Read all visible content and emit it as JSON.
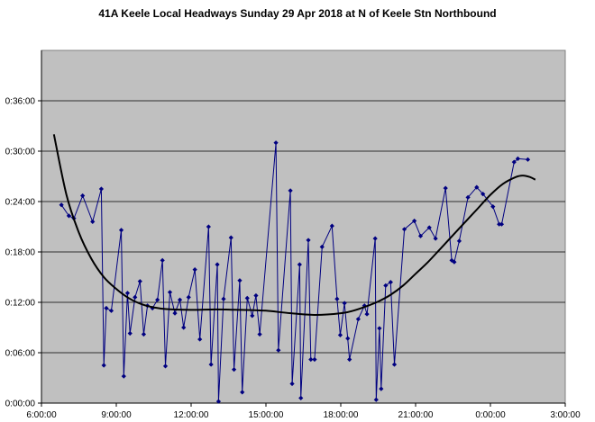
{
  "chart_data": {
    "type": "line",
    "title": "41A Keele Local Headways Sunday 29 Apr 2018 at N of Keele Stn Northbound",
    "xlabel": "",
    "ylabel": "",
    "x_axis": {
      "unit": "hours since midnight",
      "range": [
        6,
        27
      ],
      "tick_labels": [
        "6:00:00",
        "9:00:00",
        "12:00:00",
        "15:00:00",
        "18:00:00",
        "21:00:00",
        "0:00:00",
        "3:00:00"
      ]
    },
    "y_axis": {
      "unit": "minutes",
      "range": [
        0,
        42
      ],
      "tick_labels": [
        "0:00:00",
        "0:06:00",
        "0:12:00",
        "0:18:00",
        "0:24:00",
        "0:30:00",
        "0:36:00"
      ]
    },
    "grid": "horizontal",
    "legend": "none",
    "series": [
      {
        "color": "#000080",
        "marker": "diamond",
        "points": [
          [
            6.8,
            23.6
          ],
          [
            7.1,
            22.3
          ],
          [
            7.3,
            22.0
          ],
          [
            7.65,
            24.7
          ],
          [
            8.05,
            21.6
          ],
          [
            8.4,
            25.5
          ],
          [
            8.5,
            4.5
          ],
          [
            8.6,
            11.3
          ],
          [
            8.8,
            11.0
          ],
          [
            9.2,
            20.6
          ],
          [
            9.3,
            3.2
          ],
          [
            9.45,
            13.1
          ],
          [
            9.55,
            8.3
          ],
          [
            9.75,
            12.6
          ],
          [
            9.95,
            14.5
          ],
          [
            10.1,
            8.2
          ],
          [
            10.25,
            11.6
          ],
          [
            10.45,
            11.3
          ],
          [
            10.65,
            12.3
          ],
          [
            10.85,
            17.0
          ],
          [
            10.97,
            4.4
          ],
          [
            11.15,
            13.2
          ],
          [
            11.35,
            10.7
          ],
          [
            11.55,
            12.3
          ],
          [
            11.7,
            9.0
          ],
          [
            11.9,
            12.6
          ],
          [
            12.15,
            15.9
          ],
          [
            12.35,
            7.6
          ],
          [
            12.7,
            21.0
          ],
          [
            12.8,
            4.6
          ],
          [
            13.05,
            16.5
          ],
          [
            13.1,
            0.2
          ],
          [
            13.3,
            12.4
          ],
          [
            13.6,
            19.7
          ],
          [
            13.72,
            4.0
          ],
          [
            13.95,
            14.6
          ],
          [
            14.05,
            1.3
          ],
          [
            14.25,
            12.5
          ],
          [
            14.45,
            10.4
          ],
          [
            14.6,
            12.8
          ],
          [
            14.75,
            8.2
          ],
          [
            15.4,
            31.0
          ],
          [
            15.5,
            6.3
          ],
          [
            15.98,
            25.3
          ],
          [
            16.05,
            2.3
          ],
          [
            16.35,
            16.5
          ],
          [
            16.4,
            0.6
          ],
          [
            16.7,
            19.4
          ],
          [
            16.8,
            5.2
          ],
          [
            16.95,
            5.2
          ],
          [
            17.25,
            18.6
          ],
          [
            17.65,
            21.1
          ],
          [
            17.85,
            12.4
          ],
          [
            17.98,
            8.1
          ],
          [
            18.15,
            11.9
          ],
          [
            18.28,
            7.7
          ],
          [
            18.35,
            5.2
          ],
          [
            18.7,
            10.0
          ],
          [
            18.95,
            11.6
          ],
          [
            19.05,
            10.6
          ],
          [
            19.38,
            19.6
          ],
          [
            19.42,
            0.4
          ],
          [
            19.55,
            8.9
          ],
          [
            19.62,
            1.7
          ],
          [
            19.8,
            14.0
          ],
          [
            20.0,
            14.4
          ],
          [
            20.15,
            4.6
          ],
          [
            20.55,
            20.7
          ],
          [
            20.95,
            21.7
          ],
          [
            21.2,
            19.9
          ],
          [
            21.55,
            20.9
          ],
          [
            21.8,
            19.6
          ],
          [
            22.2,
            25.6
          ],
          [
            22.45,
            17.0
          ],
          [
            22.55,
            16.8
          ],
          [
            22.75,
            19.3
          ],
          [
            23.1,
            24.5
          ],
          [
            23.45,
            25.7
          ],
          [
            23.7,
            24.9
          ],
          [
            24.1,
            23.4
          ],
          [
            24.35,
            21.3
          ],
          [
            24.45,
            21.3
          ],
          [
            24.95,
            28.7
          ],
          [
            25.1,
            29.1
          ],
          [
            25.5,
            29.0
          ]
        ]
      },
      {
        "color": "#000000",
        "marker": "none",
        "role": "trendline",
        "points": [
          [
            6.5,
            32.0
          ],
          [
            7.0,
            24.8
          ],
          [
            7.5,
            20.3
          ],
          [
            8.0,
            17.2
          ],
          [
            8.5,
            15.0
          ],
          [
            9.0,
            13.6
          ],
          [
            9.5,
            12.5
          ],
          [
            10.0,
            11.8
          ],
          [
            10.5,
            11.4
          ],
          [
            11.0,
            11.2
          ],
          [
            12.0,
            11.1
          ],
          [
            13.0,
            11.15
          ],
          [
            14.0,
            11.1
          ],
          [
            15.0,
            11.0
          ],
          [
            16.0,
            10.7
          ],
          [
            17.0,
            10.5
          ],
          [
            18.0,
            10.7
          ],
          [
            18.5,
            11.0
          ],
          [
            19.0,
            11.5
          ],
          [
            19.5,
            12.1
          ],
          [
            20.0,
            12.9
          ],
          [
            20.5,
            14.0
          ],
          [
            21.0,
            15.4
          ],
          [
            21.5,
            16.8
          ],
          [
            22.0,
            18.4
          ],
          [
            22.5,
            20.0
          ],
          [
            23.0,
            21.6
          ],
          [
            23.5,
            23.2
          ],
          [
            24.0,
            24.8
          ],
          [
            24.5,
            26.1
          ],
          [
            25.0,
            26.9
          ],
          [
            25.3,
            27.1
          ],
          [
            25.6,
            26.9
          ],
          [
            25.8,
            26.6
          ]
        ]
      }
    ]
  }
}
